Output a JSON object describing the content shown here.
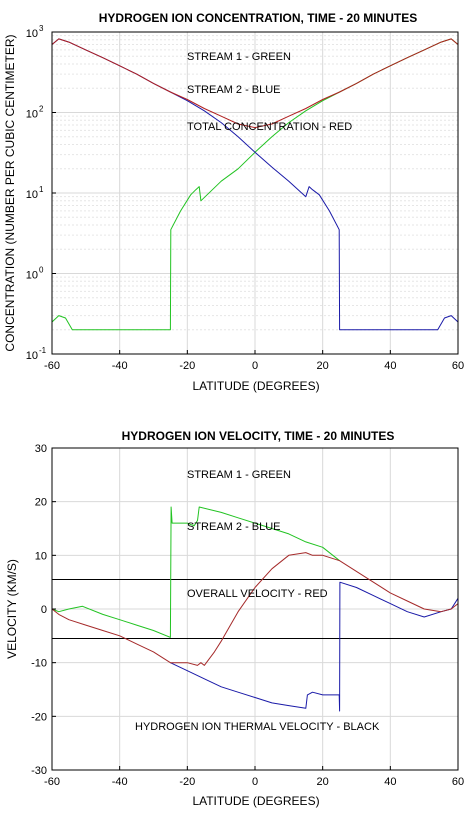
{
  "chart_data": [
    {
      "type": "line",
      "title": "HYDROGEN ION CONCENTRATION, TIME - 20 MINUTES",
      "xlabel": "LATITUDE (DEGREES)",
      "ylabel": "CONCENTRATION (NUMBER PER CUBIC CENTIMETER)",
      "xlim": [
        -60,
        60
      ],
      "ylim": [
        0.1,
        1000
      ],
      "yscale": "log",
      "xticks": [
        -60,
        -40,
        -20,
        0,
        20,
        40,
        60
      ],
      "xtick_labels": [
        "-60",
        "-40",
        "-20",
        "0",
        "20",
        "40",
        "60"
      ],
      "yticks": [
        0.1,
        1,
        10,
        100,
        1000
      ],
      "ytick_labels": [
        {
          "base": "10",
          "exp": "-1"
        },
        {
          "base": "10",
          "exp": "0"
        },
        {
          "base": "10",
          "exp": "1"
        },
        {
          "base": "10",
          "exp": "2"
        },
        {
          "base": "10",
          "exp": "3"
        }
      ],
      "grid": true,
      "annotations": [
        "STREAM 1 - GREEN",
        "STREAM 2 - BLUE",
        "TOTAL CONCENTRATION - RED"
      ],
      "series": [
        {
          "color": "#22c322",
          "points": [
            [
              -60,
              0.25
            ],
            [
              -58,
              0.3
            ],
            [
              -56,
              0.28
            ],
            [
              -54,
              0.2
            ],
            [
              -40,
              0.2
            ],
            [
              -25,
              0.2
            ],
            [
              -24.9,
              3.5
            ],
            [
              -22,
              6
            ],
            [
              -19,
              9.5
            ],
            [
              -17.5,
              11
            ],
            [
              -16.5,
              12
            ],
            [
              -16,
              8
            ],
            [
              -10,
              14
            ],
            [
              -5,
              20
            ],
            [
              0,
              32
            ],
            [
              5,
              50
            ],
            [
              10,
              75
            ],
            [
              15,
              105
            ],
            [
              20,
              140
            ],
            [
              25,
              180
            ],
            [
              30,
              230
            ],
            [
              35,
              300
            ],
            [
              40,
              380
            ],
            [
              45,
              480
            ],
            [
              50,
              600
            ],
            [
              55,
              750
            ],
            [
              58,
              820
            ],
            [
              60,
              700
            ]
          ]
        },
        {
          "color": "#1a1aa8",
          "points": [
            [
              -60,
              700
            ],
            [
              -58,
              820
            ],
            [
              -55,
              750
            ],
            [
              -50,
              600
            ],
            [
              -45,
              480
            ],
            [
              -40,
              380
            ],
            [
              -35,
              300
            ],
            [
              -30,
              230
            ],
            [
              -25,
              180
            ],
            [
              -20,
              140
            ],
            [
              -15,
              105
            ],
            [
              -10,
              75
            ],
            [
              -5,
              50
            ],
            [
              0,
              32
            ],
            [
              5,
              21
            ],
            [
              10,
              14
            ],
            [
              15,
              9
            ],
            [
              16,
              12
            ],
            [
              17,
              11
            ],
            [
              19,
              9.5
            ],
            [
              22,
              6
            ],
            [
              24.9,
              3.5
            ],
            [
              25,
              0.2
            ],
            [
              40,
              0.2
            ],
            [
              54,
              0.2
            ],
            [
              56,
              0.28
            ],
            [
              58,
              0.3
            ],
            [
              60,
              0.25
            ]
          ]
        },
        {
          "color": "#b02020",
          "points": [
            [
              -60,
              700
            ],
            [
              -58,
              820
            ],
            [
              -55,
              750
            ],
            [
              -50,
              600
            ],
            [
              -45,
              480
            ],
            [
              -40,
              380
            ],
            [
              -35,
              300
            ],
            [
              -30,
              230
            ],
            [
              -25,
              180
            ],
            [
              -20,
              145
            ],
            [
              -15,
              112
            ],
            [
              -10,
              90
            ],
            [
              -5,
              72
            ],
            [
              0,
              65
            ],
            [
              5,
              72
            ],
            [
              10,
              90
            ],
            [
              15,
              112
            ],
            [
              20,
              145
            ],
            [
              25,
              180
            ],
            [
              30,
              230
            ],
            [
              35,
              300
            ],
            [
              40,
              380
            ],
            [
              45,
              480
            ],
            [
              50,
              600
            ],
            [
              55,
              750
            ],
            [
              58,
              820
            ],
            [
              60,
              700
            ]
          ]
        }
      ]
    },
    {
      "type": "line",
      "title": "HYDROGEN ION VELOCITY, TIME - 20 MINUTES",
      "xlabel": "LATITUDE (DEGREES)",
      "ylabel": "VELOCITY (KM/S)",
      "xlim": [
        -60,
        60
      ],
      "ylim": [
        -30,
        30
      ],
      "yscale": "linear",
      "xticks": [
        -60,
        -40,
        -20,
        0,
        20,
        40,
        60
      ],
      "xtick_labels": [
        "-60",
        "-40",
        "-20",
        "0",
        "20",
        "40",
        "60"
      ],
      "yticks": [
        -30,
        -20,
        -10,
        0,
        10,
        20,
        30
      ],
      "ytick_labels": [
        "-30",
        "-20",
        "-10",
        "0",
        "10",
        "20",
        "30"
      ],
      "grid": true,
      "annotations": [
        "STREAM 1 - GREEN",
        "STREAM 2 - BLUE",
        "OVERALL VELOCITY - RED",
        "HYDROGEN ION THERMAL VELOCITY - BLACK"
      ],
      "series": [
        {
          "color": "#22c322",
          "points": [
            [
              -60,
              0
            ],
            [
              -58,
              -0.5
            ],
            [
              -55,
              0
            ],
            [
              -51,
              0.5
            ],
            [
              -45,
              -1
            ],
            [
              -40,
              -2
            ],
            [
              -35,
              -3
            ],
            [
              -30,
              -4
            ],
            [
              -25,
              -5.3
            ],
            [
              -24.8,
              19
            ],
            [
              -24.5,
              16
            ],
            [
              -20,
              16
            ],
            [
              -18,
              15.5
            ],
            [
              -17,
              16.5
            ],
            [
              -16.5,
              19
            ],
            [
              -10,
              18
            ],
            [
              -5,
              17
            ],
            [
              0,
              16
            ],
            [
              5,
              15
            ],
            [
              10,
              14
            ],
            [
              15,
              12.5
            ],
            [
              20,
              11.5
            ],
            [
              25,
              9
            ]
          ]
        },
        {
          "color": "#1a1aa8",
          "points": [
            [
              -25,
              -10
            ],
            [
              -20,
              -11.5
            ],
            [
              -15,
              -13
            ],
            [
              -10,
              -14.5
            ],
            [
              -5,
              -15.5
            ],
            [
              0,
              -16.5
            ],
            [
              5,
              -17.5
            ],
            [
              10,
              -18
            ],
            [
              15,
              -18.5
            ],
            [
              15.5,
              -16
            ],
            [
              17,
              -15.5
            ],
            [
              20,
              -16
            ],
            [
              24.9,
              -16
            ],
            [
              25,
              -19
            ],
            [
              25.1,
              5
            ],
            [
              30,
              4
            ],
            [
              35,
              2.5
            ],
            [
              40,
              1
            ],
            [
              45,
              -0.5
            ],
            [
              50,
              -1.5
            ],
            [
              55,
              -0.5
            ],
            [
              58,
              0
            ],
            [
              60,
              2
            ]
          ]
        },
        {
          "color": "#a52a2a",
          "points": [
            [
              -60,
              0
            ],
            [
              -58,
              -1
            ],
            [
              -55,
              -2
            ],
            [
              -50,
              -3
            ],
            [
              -45,
              -4
            ],
            [
              -40,
              -5
            ],
            [
              -35,
              -6.5
            ],
            [
              -30,
              -8
            ],
            [
              -25,
              -10
            ],
            [
              -20,
              -10
            ],
            [
              -17,
              -10.5
            ],
            [
              -16,
              -10
            ],
            [
              -15,
              -10.5
            ],
            [
              -12,
              -8
            ],
            [
              -10,
              -6
            ],
            [
              -5,
              -0.5
            ],
            [
              0,
              4
            ],
            [
              5,
              7.5
            ],
            [
              10,
              10
            ],
            [
              15,
              10.5
            ],
            [
              17,
              10
            ],
            [
              20,
              10
            ],
            [
              25,
              9
            ],
            [
              30,
              7
            ],
            [
              35,
              5
            ],
            [
              40,
              3
            ],
            [
              45,
              1.5
            ],
            [
              50,
              0
            ],
            [
              55,
              -0.5
            ],
            [
              58,
              0
            ],
            [
              60,
              1
            ]
          ]
        }
      ],
      "reference_lines": [
        {
          "color": "#000000",
          "y": 5.5
        },
        {
          "color": "#000000",
          "y": -5.5
        }
      ]
    }
  ]
}
